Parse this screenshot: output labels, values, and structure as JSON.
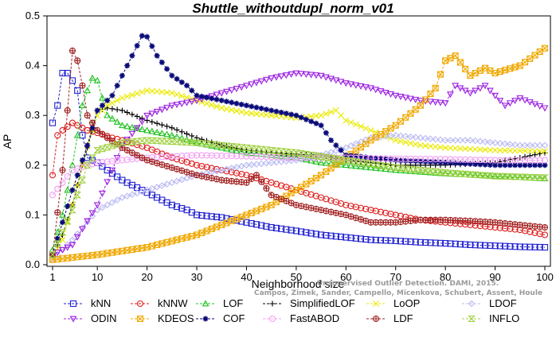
{
  "chart_data": {
    "type": "line",
    "title": "Shuttle_withoutdupl_norm_v01",
    "xlabel": "Neighborhood size",
    "ylabel": "AP",
    "xlim": [
      1,
      100
    ],
    "ylim": [
      0,
      0.5
    ],
    "xticks": [
      1,
      10,
      20,
      30,
      40,
      50,
      60,
      70,
      80,
      90,
      100
    ],
    "yticks": [
      0.0,
      0.1,
      0.2,
      0.3,
      0.4,
      0.5
    ],
    "legend_position": "bottom",
    "watermark": [
      "Unsupervised Outlier Detection. DAMI, 2015.",
      "Campos, Zimek, Sander, Campello, Micenkova, Schubert, Assent, Houle"
    ],
    "series": [
      {
        "name": "kNN",
        "color": "#1f1fd0",
        "marker": "square",
        "points": [
          [
            1,
            0.285
          ],
          [
            2,
            0.32
          ],
          [
            3,
            0.385
          ],
          [
            4,
            0.385
          ],
          [
            5,
            0.37
          ],
          [
            6,
            0.35
          ],
          [
            7,
            0.26
          ],
          [
            8,
            0.215
          ],
          [
            10,
            0.205
          ],
          [
            12,
            0.19
          ],
          [
            15,
            0.17
          ],
          [
            18,
            0.155
          ],
          [
            20,
            0.145
          ],
          [
            22,
            0.135
          ],
          [
            25,
            0.12
          ],
          [
            28,
            0.11
          ],
          [
            30,
            0.1
          ],
          [
            35,
            0.095
          ],
          [
            40,
            0.085
          ],
          [
            45,
            0.075
          ],
          [
            50,
            0.068
          ],
          [
            55,
            0.06
          ],
          [
            60,
            0.055
          ],
          [
            65,
            0.05
          ],
          [
            70,
            0.048
          ],
          [
            75,
            0.045
          ],
          [
            80,
            0.043
          ],
          [
            85,
            0.04
          ],
          [
            90,
            0.038
          ],
          [
            95,
            0.036
          ],
          [
            100,
            0.035
          ]
        ]
      },
      {
        "name": "kNNW",
        "color": "#dd1a1a",
        "marker": "circle",
        "points": [
          [
            1,
            0.18
          ],
          [
            2,
            0.26
          ],
          [
            3,
            0.27
          ],
          [
            5,
            0.285
          ],
          [
            8,
            0.27
          ],
          [
            10,
            0.265
          ],
          [
            13,
            0.255
          ],
          [
            15,
            0.25
          ],
          [
            20,
            0.235
          ],
          [
            25,
            0.215
          ],
          [
            30,
            0.2
          ],
          [
            35,
            0.19
          ],
          [
            40,
            0.18
          ],
          [
            45,
            0.165
          ],
          [
            50,
            0.15
          ],
          [
            55,
            0.135
          ],
          [
            60,
            0.12
          ],
          [
            65,
            0.11
          ],
          [
            70,
            0.1
          ],
          [
            75,
            0.09
          ],
          [
            80,
            0.085
          ],
          [
            85,
            0.08
          ],
          [
            90,
            0.075
          ],
          [
            95,
            0.07
          ],
          [
            100,
            0.06
          ]
        ]
      },
      {
        "name": "LOF",
        "color": "#1fc21f",
        "marker": "triangle-up",
        "points": [
          [
            1,
            0.03
          ],
          [
            3,
            0.1
          ],
          [
            5,
            0.2
          ],
          [
            7,
            0.32
          ],
          [
            8,
            0.35
          ],
          [
            9,
            0.375
          ],
          [
            10,
            0.37
          ],
          [
            12,
            0.3
          ],
          [
            15,
            0.28
          ],
          [
            20,
            0.27
          ],
          [
            25,
            0.26
          ],
          [
            30,
            0.245
          ],
          [
            35,
            0.235
          ],
          [
            40,
            0.225
          ],
          [
            45,
            0.22
          ],
          [
            50,
            0.215
          ],
          [
            55,
            0.205
          ],
          [
            60,
            0.2
          ],
          [
            70,
            0.19
          ],
          [
            80,
            0.183
          ],
          [
            90,
            0.178
          ],
          [
            100,
            0.173
          ]
        ]
      },
      {
        "name": "SimplifiedLOF",
        "color": "#000000",
        "marker": "plus",
        "points": [
          [
            1,
            0.02
          ],
          [
            3,
            0.06
          ],
          [
            5,
            0.12
          ],
          [
            7,
            0.2
          ],
          [
            9,
            0.27
          ],
          [
            10,
            0.31
          ],
          [
            12,
            0.315
          ],
          [
            15,
            0.31
          ],
          [
            20,
            0.29
          ],
          [
            25,
            0.275
          ],
          [
            30,
            0.255
          ],
          [
            35,
            0.24
          ],
          [
            40,
            0.23
          ],
          [
            45,
            0.225
          ],
          [
            50,
            0.222
          ],
          [
            55,
            0.22
          ],
          [
            60,
            0.21
          ],
          [
            65,
            0.205
          ],
          [
            70,
            0.2
          ],
          [
            80,
            0.2
          ],
          [
            90,
            0.205
          ],
          [
            95,
            0.215
          ],
          [
            100,
            0.225
          ]
        ]
      },
      {
        "name": "LoOP",
        "color": "#eaea00",
        "marker": "x",
        "points": [
          [
            1,
            0.015
          ],
          [
            3,
            0.05
          ],
          [
            5,
            0.12
          ],
          [
            8,
            0.24
          ],
          [
            10,
            0.3
          ],
          [
            12,
            0.32
          ],
          [
            15,
            0.335
          ],
          [
            20,
            0.35
          ],
          [
            25,
            0.345
          ],
          [
            30,
            0.33
          ],
          [
            35,
            0.315
          ],
          [
            40,
            0.305
          ],
          [
            45,
            0.3
          ],
          [
            50,
            0.295
          ],
          [
            55,
            0.3
          ],
          [
            58,
            0.31
          ],
          [
            60,
            0.29
          ],
          [
            65,
            0.27
          ],
          [
            70,
            0.25
          ],
          [
            75,
            0.24
          ],
          [
            80,
            0.235
          ],
          [
            90,
            0.23
          ],
          [
            100,
            0.228
          ]
        ]
      },
      {
        "name": "LDOF",
        "color": "#b8b8f2",
        "marker": "diamond",
        "points": [
          [
            1,
            0.01
          ],
          [
            5,
            0.05
          ],
          [
            10,
            0.11
          ],
          [
            15,
            0.135
          ],
          [
            20,
            0.15
          ],
          [
            25,
            0.165
          ],
          [
            30,
            0.18
          ],
          [
            35,
            0.19
          ],
          [
            40,
            0.2
          ],
          [
            45,
            0.205
          ],
          [
            50,
            0.21
          ],
          [
            55,
            0.22
          ],
          [
            60,
            0.235
          ],
          [
            65,
            0.255
          ],
          [
            70,
            0.26
          ],
          [
            75,
            0.255
          ],
          [
            80,
            0.25
          ],
          [
            85,
            0.25
          ],
          [
            90,
            0.245
          ],
          [
            95,
            0.24
          ],
          [
            100,
            0.24
          ]
        ]
      },
      {
        "name": "ODIN",
        "color": "#9a1fe0",
        "marker": "triangle-down",
        "points": [
          [
            1,
            0.02
          ],
          [
            5,
            0.04
          ],
          [
            10,
            0.12
          ],
          [
            13,
            0.19
          ],
          [
            15,
            0.24
          ],
          [
            18,
            0.275
          ],
          [
            20,
            0.3
          ],
          [
            25,
            0.32
          ],
          [
            30,
            0.33
          ],
          [
            35,
            0.345
          ],
          [
            40,
            0.36
          ],
          [
            45,
            0.375
          ],
          [
            50,
            0.385
          ],
          [
            55,
            0.38
          ],
          [
            60,
            0.365
          ],
          [
            65,
            0.355
          ],
          [
            70,
            0.34
          ],
          [
            75,
            0.33
          ],
          [
            80,
            0.325
          ],
          [
            82,
            0.36
          ],
          [
            85,
            0.345
          ],
          [
            88,
            0.36
          ],
          [
            92,
            0.32
          ],
          [
            95,
            0.335
          ],
          [
            100,
            0.315
          ]
        ]
      },
      {
        "name": "KDEOS",
        "color": "#f0a800",
        "marker": "boxed-x",
        "points": [
          [
            1,
            0.01
          ],
          [
            10,
            0.02
          ],
          [
            20,
            0.035
          ],
          [
            30,
            0.06
          ],
          [
            40,
            0.1
          ],
          [
            45,
            0.12
          ],
          [
            50,
            0.15
          ],
          [
            55,
            0.18
          ],
          [
            60,
            0.215
          ],
          [
            65,
            0.25
          ],
          [
            70,
            0.28
          ],
          [
            75,
            0.32
          ],
          [
            78,
            0.355
          ],
          [
            80,
            0.41
          ],
          [
            82,
            0.42
          ],
          [
            85,
            0.38
          ],
          [
            88,
            0.395
          ],
          [
            90,
            0.385
          ],
          [
            95,
            0.4
          ],
          [
            100,
            0.435
          ]
        ]
      },
      {
        "name": "COF",
        "color": "#0a0a7a",
        "marker": "asterisk",
        "points": [
          [
            1,
            0.02
          ],
          [
            5,
            0.15
          ],
          [
            8,
            0.24
          ],
          [
            10,
            0.31
          ],
          [
            13,
            0.34
          ],
          [
            15,
            0.38
          ],
          [
            17,
            0.42
          ],
          [
            19,
            0.46
          ],
          [
            20,
            0.458
          ],
          [
            22,
            0.42
          ],
          [
            25,
            0.38
          ],
          [
            28,
            0.36
          ],
          [
            30,
            0.34
          ],
          [
            35,
            0.33
          ],
          [
            40,
            0.32
          ],
          [
            45,
            0.31
          ],
          [
            50,
            0.3
          ],
          [
            55,
            0.28
          ],
          [
            57,
            0.25
          ],
          [
            60,
            0.22
          ],
          [
            65,
            0.215
          ],
          [
            70,
            0.21
          ],
          [
            80,
            0.205
          ],
          [
            90,
            0.2
          ],
          [
            100,
            0.2
          ]
        ]
      },
      {
        "name": "FastABOD",
        "color": "#f2a0f2",
        "marker": "circle",
        "points": [
          [
            1,
            0.14
          ],
          [
            5,
            0.19
          ],
          [
            10,
            0.205
          ],
          [
            15,
            0.21
          ],
          [
            20,
            0.215
          ],
          [
            30,
            0.22
          ],
          [
            40,
            0.218
          ],
          [
            50,
            0.215
          ],
          [
            60,
            0.215
          ],
          [
            70,
            0.213
          ],
          [
            80,
            0.212
          ],
          [
            90,
            0.21
          ],
          [
            100,
            0.21
          ]
        ]
      },
      {
        "name": "LDF",
        "color": "#a02020",
        "marker": "circle-plus",
        "points": [
          [
            1,
            0.02
          ],
          [
            3,
            0.19
          ],
          [
            5,
            0.43
          ],
          [
            6,
            0.41
          ],
          [
            7,
            0.36
          ],
          [
            8,
            0.3
          ],
          [
            10,
            0.27
          ],
          [
            12,
            0.255
          ],
          [
            15,
            0.235
          ],
          [
            20,
            0.21
          ],
          [
            25,
            0.195
          ],
          [
            30,
            0.18
          ],
          [
            35,
            0.17
          ],
          [
            40,
            0.165
          ],
          [
            42,
            0.18
          ],
          [
            45,
            0.14
          ],
          [
            50,
            0.12
          ],
          [
            55,
            0.11
          ],
          [
            60,
            0.1
          ],
          [
            65,
            0.085
          ],
          [
            70,
            0.085
          ],
          [
            75,
            0.09
          ],
          [
            80,
            0.09
          ],
          [
            85,
            0.088
          ],
          [
            90,
            0.085
          ],
          [
            95,
            0.08
          ],
          [
            100,
            0.075
          ]
        ]
      },
      {
        "name": "INFLO",
        "color": "#a0d040",
        "marker": "hourglass",
        "points": [
          [
            1,
            0.02
          ],
          [
            5,
            0.11
          ],
          [
            8,
            0.2
          ],
          [
            10,
            0.23
          ],
          [
            15,
            0.245
          ],
          [
            20,
            0.25
          ],
          [
            30,
            0.245
          ],
          [
            40,
            0.235
          ],
          [
            50,
            0.225
          ],
          [
            60,
            0.21
          ],
          [
            70,
            0.195
          ],
          [
            80,
            0.185
          ],
          [
            90,
            0.178
          ],
          [
            100,
            0.175
          ]
        ]
      }
    ]
  }
}
